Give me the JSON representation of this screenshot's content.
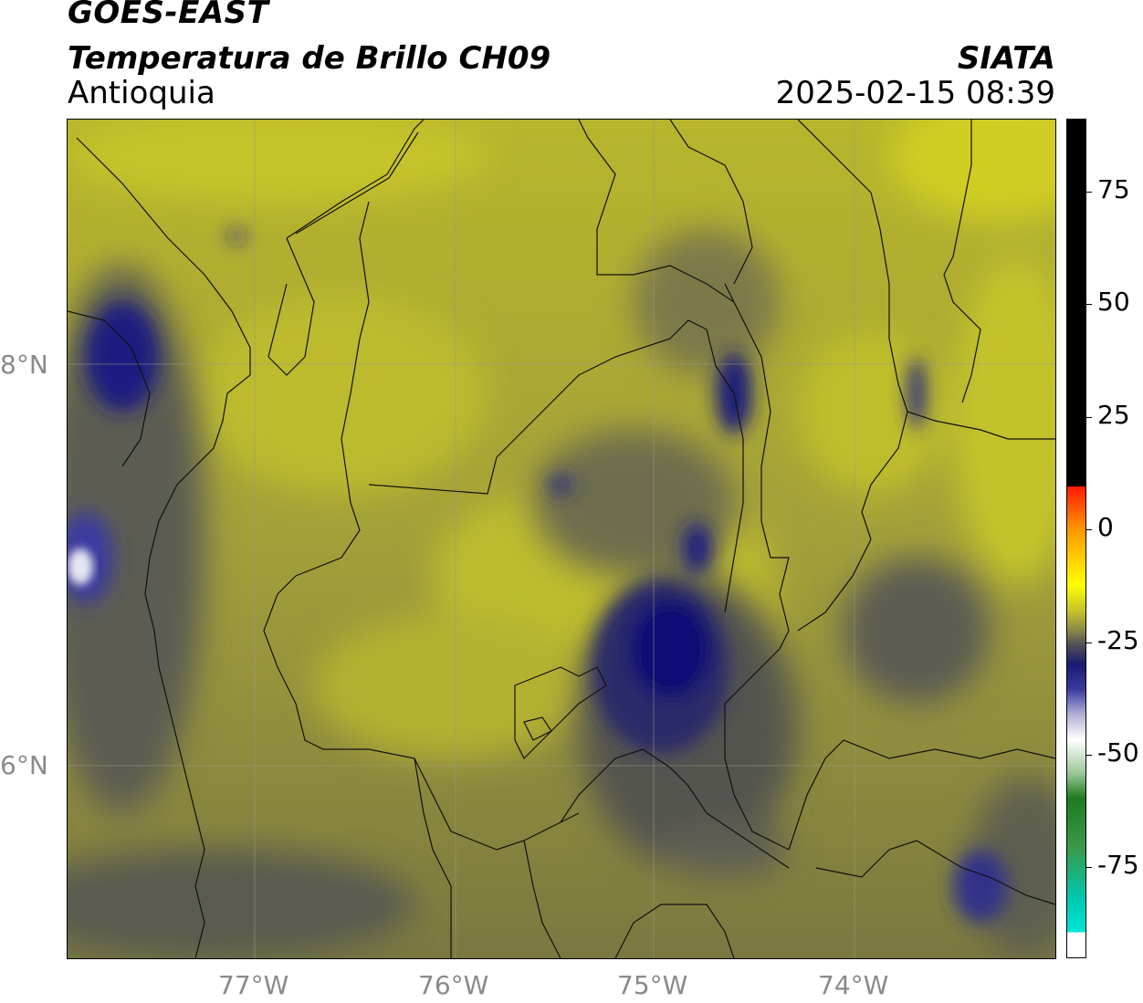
{
  "header": {
    "title": "GOES-EAST",
    "subtitle": "Temperatura de Brillo CH09",
    "region": "Antioquia",
    "organization": "SIATA",
    "timestamp": "2025-02-15 08:39"
  },
  "map": {
    "lat_labels": [
      "8°N",
      "6°N"
    ],
    "lon_labels": [
      "77°W",
      "76°W",
      "75°W",
      "74°W"
    ],
    "lat_values": [
      8,
      6
    ],
    "lon_values": [
      -77,
      -76,
      -75,
      -74
    ],
    "extent": {
      "lon_min": -77.94,
      "lon_max": -73.03,
      "lat_min": 5.05,
      "lat_max": 9.23
    }
  },
  "colorbar": {
    "tick_labels": [
      "75",
      "50",
      "25",
      "0",
      "-25",
      "-50",
      "-75"
    ],
    "tick_values": [
      75,
      50,
      25,
      0,
      -25,
      -50,
      -75
    ],
    "range": [
      -95,
      91
    ],
    "colors": {
      "black_top": "#000000",
      "red": "#ff1a00",
      "orange": "#ff9900",
      "yellow": "#ffff00",
      "olive": "#c9c62a",
      "gray": "#555555",
      "navy": "#0a0a78",
      "white": "#ffffff",
      "green": "#1f7a1f",
      "cyan": "#00e5d8"
    }
  }
}
